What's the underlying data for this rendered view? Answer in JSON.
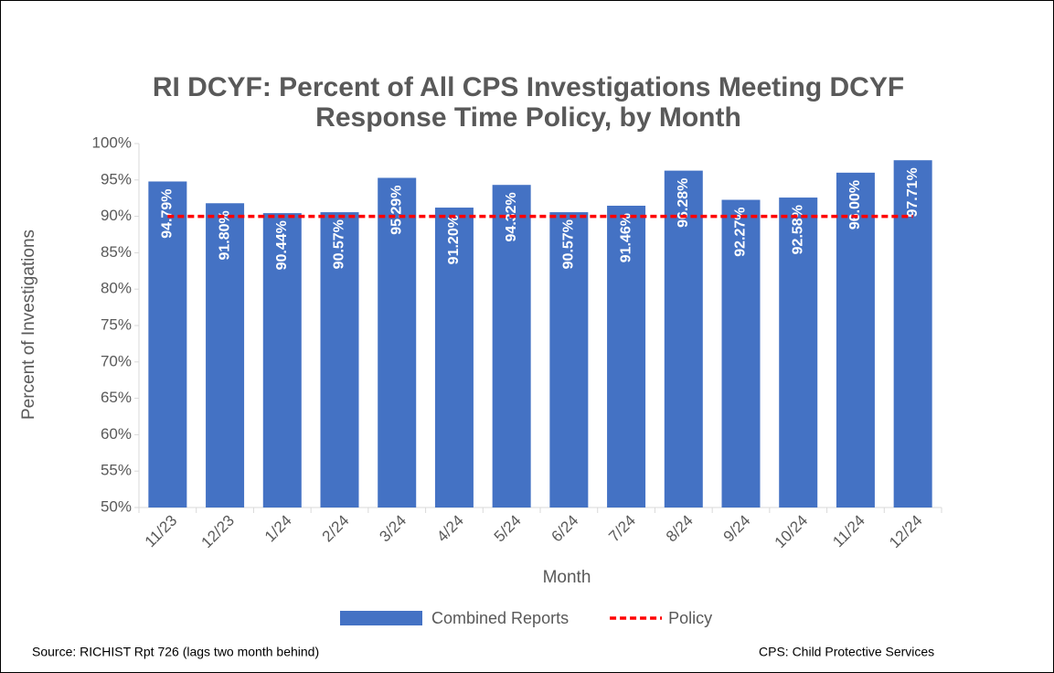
{
  "chart_data": {
    "type": "bar",
    "title": [
      "RI DCYF: Percent of All CPS Investigations Meeting DCYF",
      "Response Time Policy, by Month"
    ],
    "x_label": "Month",
    "y_label": "Percent of Investigations",
    "categories": [
      "11/23",
      "12/23",
      "1/24",
      "2/24",
      "3/24",
      "4/24",
      "5/24",
      "6/24",
      "7/24",
      "8/24",
      "9/24",
      "10/24",
      "11/24",
      "12/24"
    ],
    "series": [
      {
        "name": "Combined Reports",
        "color": "#4472c4",
        "type": "bar",
        "values": [
          94.79,
          91.8,
          90.44,
          90.57,
          95.29,
          91.2,
          94.32,
          90.57,
          91.46,
          96.28,
          92.27,
          92.58,
          96.0,
          97.71
        ],
        "value_labels": [
          "94.79%",
          "91.80%",
          "90.44%",
          "90.57%",
          "95.29%",
          "91.20%",
          "94.32%",
          "90.57%",
          "91.46%",
          "96.28%",
          "92.27%",
          "92.58%",
          "96.00%",
          "97.71%"
        ]
      },
      {
        "name": "Policy",
        "color": "#ff0000",
        "type": "line",
        "values": [
          90,
          90,
          90,
          90,
          90,
          90,
          90,
          90,
          90,
          90,
          90,
          90,
          90,
          90
        ]
      }
    ],
    "ylim": [
      50,
      100
    ],
    "yticks": [
      {
        "value": 50,
        "label": "50%"
      },
      {
        "value": 55,
        "label": "55%"
      },
      {
        "value": 60,
        "label": "60%"
      },
      {
        "value": 65,
        "label": "65%"
      },
      {
        "value": 70,
        "label": "70%"
      },
      {
        "value": 75,
        "label": "75%"
      },
      {
        "value": 80,
        "label": "80%"
      },
      {
        "value": 85,
        "label": "85%"
      },
      {
        "value": 90,
        "label": "90%"
      },
      {
        "value": 95,
        "label": "95%"
      },
      {
        "value": 100,
        "label": "100%"
      }
    ],
    "grid": false,
    "legend": "bottom",
    "source": "Source:  RICHIST Rpt 726 (lags two month behind)",
    "note": "CPS: Child Protective Services"
  }
}
